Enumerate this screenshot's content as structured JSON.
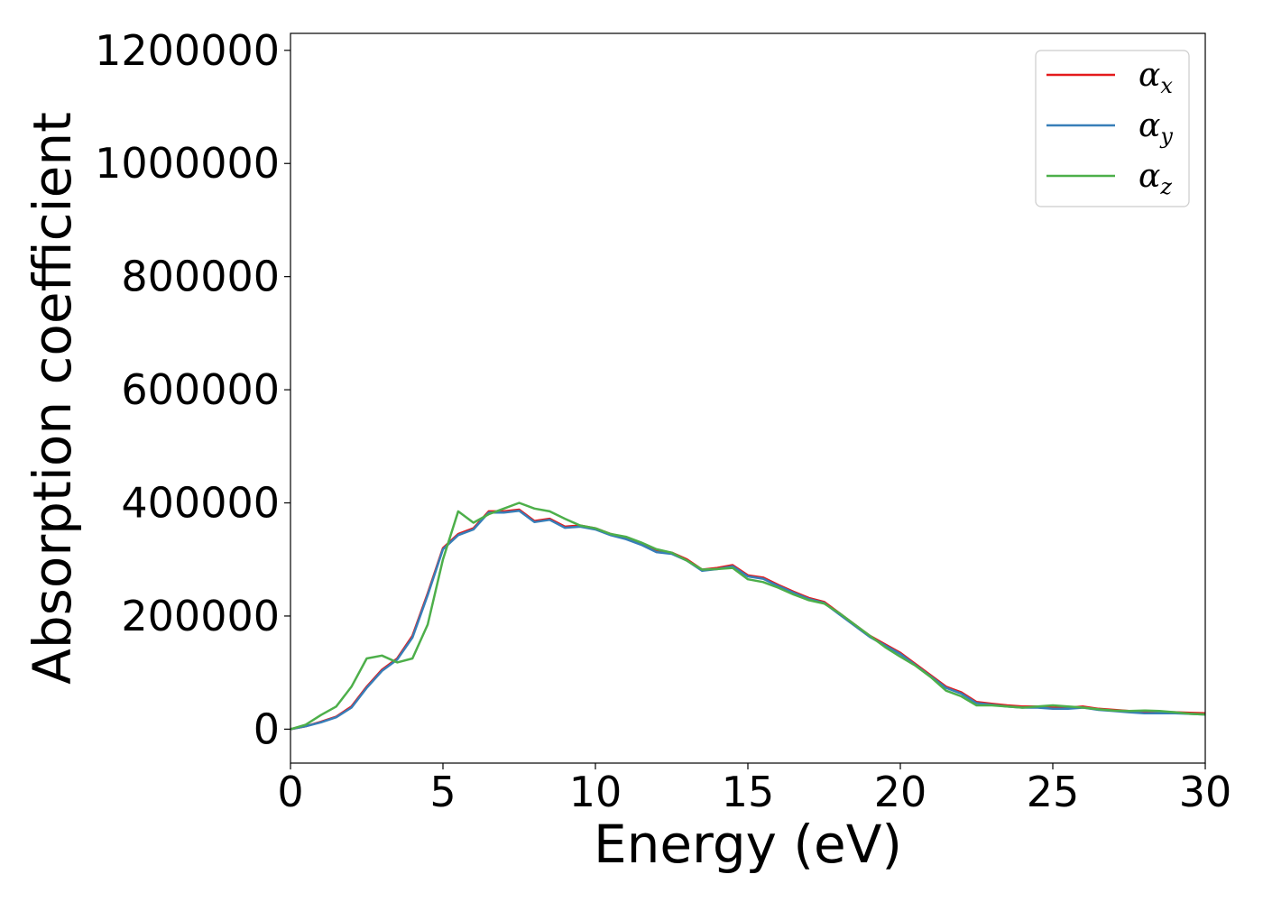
{
  "chart_data": {
    "type": "line",
    "title": "",
    "xlabel": "Energy (eV)",
    "ylabel": "Absorption coefficient",
    "xlim": [
      0,
      30
    ],
    "ylim": [
      -60000,
      1230000
    ],
    "xticks": [
      "0",
      "5",
      "10",
      "15",
      "20",
      "25",
      "30"
    ],
    "yticks": [
      "0",
      "200000",
      "400000",
      "600000",
      "800000",
      "1000000",
      "1200000"
    ],
    "grid": false,
    "legend_position": "top-right",
    "series": [
      {
        "name": "αx",
        "legend_base": "α",
        "legend_sub": "x",
        "color": "#e41a1c",
        "x": [
          0,
          0.5,
          1,
          1.5,
          2,
          2.5,
          3,
          3.5,
          4,
          4.5,
          5,
          5.5,
          6,
          6.5,
          7,
          7.5,
          8,
          8.5,
          9,
          9.5,
          10,
          10.5,
          11,
          11.5,
          12,
          12.5,
          13,
          13.5,
          14,
          14.5,
          15,
          15.5,
          16,
          16.5,
          17,
          17.5,
          18,
          18.5,
          19,
          19.5,
          20,
          20.5,
          21,
          21.5,
          22,
          22.5,
          23,
          23.5,
          24,
          24.5,
          25,
          25.5,
          26,
          26.5,
          27,
          27.5,
          28,
          28.5,
          29,
          29.5,
          30
        ],
        "y": [
          0,
          5000,
          13000,
          22000,
          40000,
          75000,
          105000,
          125000,
          165000,
          240000,
          320000,
          345000,
          355000,
          385000,
          385000,
          388000,
          368000,
          372000,
          358000,
          360000,
          355000,
          345000,
          338000,
          328000,
          315000,
          312000,
          300000,
          282000,
          285000,
          290000,
          272000,
          268000,
          255000,
          243000,
          232000,
          225000,
          205000,
          185000,
          165000,
          150000,
          135000,
          115000,
          95000,
          75000,
          65000,
          48000,
          45000,
          42000,
          40000,
          40000,
          38000,
          38000,
          40000,
          36000,
          34000,
          32000,
          30000,
          30000,
          30000,
          29000,
          28000
        ]
      },
      {
        "name": "αy",
        "legend_base": "α",
        "legend_sub": "y",
        "color": "#377eb8",
        "x": [
          0,
          0.5,
          1,
          1.5,
          2,
          2.5,
          3,
          3.5,
          4,
          4.5,
          5,
          5.5,
          6,
          6.5,
          7,
          7.5,
          8,
          8.5,
          9,
          9.5,
          10,
          10.5,
          11,
          11.5,
          12,
          12.5,
          13,
          13.5,
          14,
          14.5,
          15,
          15.5,
          16,
          16.5,
          17,
          17.5,
          18,
          18.5,
          19,
          19.5,
          20,
          20.5,
          21,
          21.5,
          22,
          22.5,
          23,
          23.5,
          24,
          24.5,
          25,
          25.5,
          26,
          26.5,
          27,
          27.5,
          28,
          28.5,
          29,
          29.5,
          30
        ],
        "y": [
          0,
          5000,
          12000,
          21000,
          38000,
          73000,
          103000,
          123000,
          162000,
          237000,
          318000,
          343000,
          353000,
          383000,
          383000,
          386000,
          366000,
          370000,
          356000,
          358000,
          353000,
          343000,
          336000,
          326000,
          313000,
          310000,
          298000,
          280000,
          283000,
          288000,
          270000,
          266000,
          253000,
          241000,
          230000,
          223000,
          203000,
          183000,
          163000,
          148000,
          133000,
          113000,
          93000,
          73000,
          63000,
          46000,
          43000,
          40000,
          38000,
          38000,
          36000,
          36000,
          38000,
          34000,
          32000,
          30000,
          28000,
          28000,
          28000,
          27000,
          26000
        ]
      },
      {
        "name": "αz",
        "legend_base": "α",
        "legend_sub": "z",
        "color": "#4daf4a",
        "x": [
          0,
          0.5,
          1,
          1.5,
          2,
          2.5,
          3,
          3.5,
          4,
          4.5,
          5,
          5.5,
          6,
          6.5,
          7,
          7.5,
          8,
          8.5,
          9,
          9.5,
          10,
          10.5,
          11,
          11.5,
          12,
          12.5,
          13,
          13.5,
          14,
          14.5,
          15,
          15.5,
          16,
          16.5,
          17,
          17.5,
          18,
          18.5,
          19,
          19.5,
          20,
          20.5,
          21,
          21.5,
          22,
          22.5,
          23,
          23.5,
          24,
          24.5,
          25,
          25.5,
          26,
          26.5,
          27,
          27.5,
          28,
          28.5,
          29,
          29.5,
          30
        ],
        "y": [
          0,
          8000,
          25000,
          40000,
          75000,
          125000,
          130000,
          118000,
          125000,
          185000,
          300000,
          385000,
          365000,
          380000,
          390000,
          400000,
          390000,
          385000,
          372000,
          360000,
          355000,
          345000,
          340000,
          330000,
          318000,
          312000,
          298000,
          282000,
          283000,
          285000,
          265000,
          260000,
          250000,
          238000,
          228000,
          222000,
          205000,
          185000,
          165000,
          145000,
          128000,
          112000,
          92000,
          68000,
          58000,
          42000,
          42000,
          40000,
          38000,
          40000,
          42000,
          40000,
          38000,
          35000,
          33000,
          32000,
          33000,
          32000,
          30000,
          27000,
          26000
        ]
      }
    ]
  }
}
